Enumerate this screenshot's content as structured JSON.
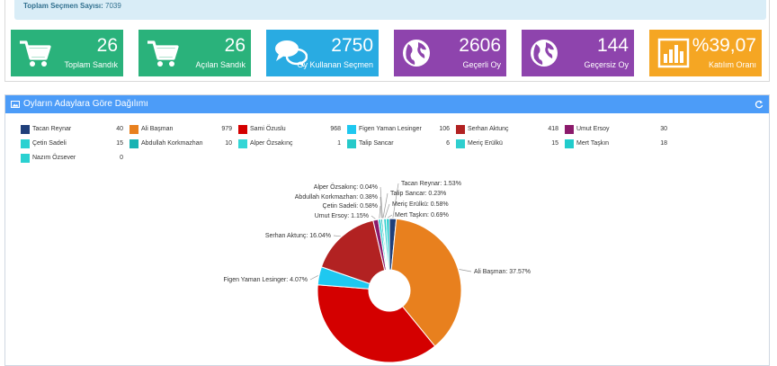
{
  "info": {
    "label": "Toplam Seçmen Sayısı:",
    "value": "7039"
  },
  "colors": {
    "green": "#2ab27b",
    "blue": "#29abe2",
    "purple": "#8e44ad",
    "orange": "#f5a623",
    "header": "#4c9cf8"
  },
  "tiles": [
    {
      "value": "26",
      "label": "Toplam Sandık",
      "icon": "cart-icon",
      "color": "#2ab27b"
    },
    {
      "value": "26",
      "label": "Açılan Sandık",
      "icon": "cart-icon",
      "color": "#2ab27b"
    },
    {
      "value": "2750",
      "label": "Oy Kullanan Seçmen",
      "icon": "chat-bubbles-icon",
      "color": "#29abe2"
    },
    {
      "value": "2606",
      "label": "Geçerli Oy",
      "icon": "globe-icon",
      "color": "#8e44ad"
    },
    {
      "value": "144",
      "label": "Geçersiz Oy",
      "icon": "globe-icon",
      "color": "#8e44ad"
    },
    {
      "value": "%39,07",
      "label": "Katılım Oranı",
      "icon": "bar-chart-icon",
      "color": "#f5a623"
    }
  ],
  "panel": {
    "title": "Oyların Adaylara Göre Dağılımı",
    "icon": "image-icon",
    "refresh_icon": "refresh-icon"
  },
  "chart_data": {
    "type": "pie",
    "title": "Oyların Adaylara Göre Dağılımı",
    "donut": true,
    "series": [
      {
        "name": "Tacan Reynar",
        "value": 40,
        "percent": "1.53%",
        "color": "#1f3f7a"
      },
      {
        "name": "Ali Başman",
        "value": 979,
        "percent": "37.57%",
        "color": "#e8801e"
      },
      {
        "name": "Sami Özuslu",
        "value": 968,
        "percent": "37.15%",
        "color": "#d40000"
      },
      {
        "name": "Figen Yaman Lesinger",
        "value": 106,
        "percent": "4.07%",
        "color": "#1ec8f0"
      },
      {
        "name": "Serhan Aktunç",
        "value": 418,
        "percent": "16.04%",
        "color": "#b22222"
      },
      {
        "name": "Umut Ersoy",
        "value": 30,
        "percent": "1.15%",
        "color": "#8b1a6b"
      },
      {
        "name": "Çetin Sadeli",
        "value": 15,
        "percent": "0.58%",
        "color": "#2ad1d1"
      },
      {
        "name": "Abdullah Korkmazhan",
        "value": 10,
        "percent": "0.38%",
        "color": "#19b3b3"
      },
      {
        "name": "Alper Özsakınç",
        "value": 1,
        "percent": "0.04%",
        "color": "#33d6d6"
      },
      {
        "name": "Talip Sancar",
        "value": 6,
        "percent": "0.23%",
        "color": "#26c9c9"
      },
      {
        "name": "Meriç Erülkü",
        "value": 15,
        "percent": "0.58%",
        "color": "#2fcfcf"
      },
      {
        "name": "Mert Taşkın",
        "value": 18,
        "percent": "0.69%",
        "color": "#22cccc"
      },
      {
        "name": "Nazım Özsever",
        "value": 0,
        "percent": "0%",
        "color": "#2ad1d1"
      }
    ]
  }
}
